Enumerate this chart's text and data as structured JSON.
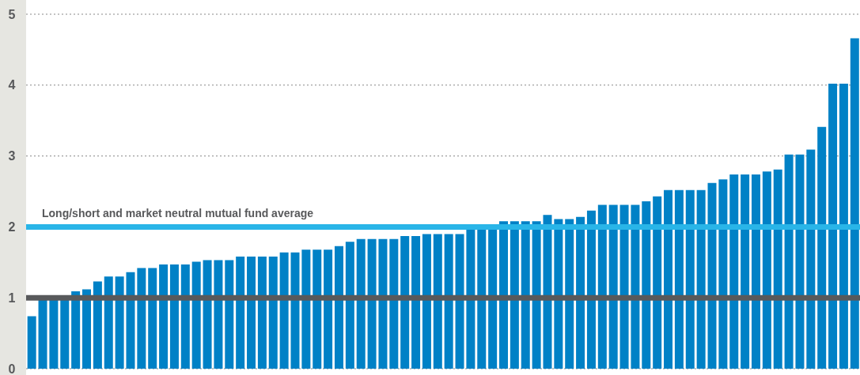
{
  "chart_data": {
    "type": "bar",
    "categories": [
      null,
      null,
      null,
      null,
      null,
      null,
      null,
      null,
      null,
      null,
      null,
      null,
      null,
      null,
      null,
      null,
      null,
      null,
      null,
      null,
      null,
      null,
      null,
      null,
      null,
      null,
      null,
      null,
      null,
      null,
      null,
      null,
      null,
      null,
      null,
      null,
      null,
      null,
      null,
      null,
      null,
      null,
      null,
      null,
      null,
      null,
      null,
      null,
      null,
      null,
      null,
      null,
      null,
      null,
      null,
      null,
      null,
      null,
      null,
      null,
      null,
      null,
      null,
      null,
      null,
      null,
      null,
      null,
      null,
      null,
      null,
      null,
      null,
      null,
      null,
      null
    ],
    "values": [
      0.74,
      1.0,
      1.0,
      1.0,
      1.09,
      1.12,
      1.23,
      1.3,
      1.3,
      1.36,
      1.42,
      1.42,
      1.47,
      1.47,
      1.47,
      1.51,
      1.53,
      1.53,
      1.53,
      1.58,
      1.58,
      1.58,
      1.58,
      1.64,
      1.64,
      1.68,
      1.68,
      1.68,
      1.73,
      1.79,
      1.83,
      1.83,
      1.83,
      1.83,
      1.87,
      1.87,
      1.9,
      1.9,
      1.9,
      1.9,
      1.97,
      1.97,
      1.97,
      2.08,
      2.08,
      2.08,
      2.08,
      2.17,
      2.11,
      2.11,
      2.14,
      2.23,
      2.31,
      2.31,
      2.31,
      2.31,
      2.36,
      2.43,
      2.52,
      2.52,
      2.52,
      2.52,
      2.62,
      2.67,
      2.74,
      2.74,
      2.74,
      2.78,
      2.81,
      3.02,
      3.02,
      3.09,
      3.41,
      4.02,
      4.02,
      4.66
    ],
    "color": "#0081c6",
    "ylim": [
      0,
      5
    ],
    "yticks": [
      0,
      1,
      2,
      3,
      4,
      5
    ],
    "grid": "y",
    "ref_lines": [
      {
        "axis": "y",
        "value": 1,
        "color": "#58595b"
      },
      {
        "axis": "y",
        "value": 2,
        "label": "Long/short and market neutral mutual fund average",
        "color": "#29b5e8"
      }
    ]
  }
}
